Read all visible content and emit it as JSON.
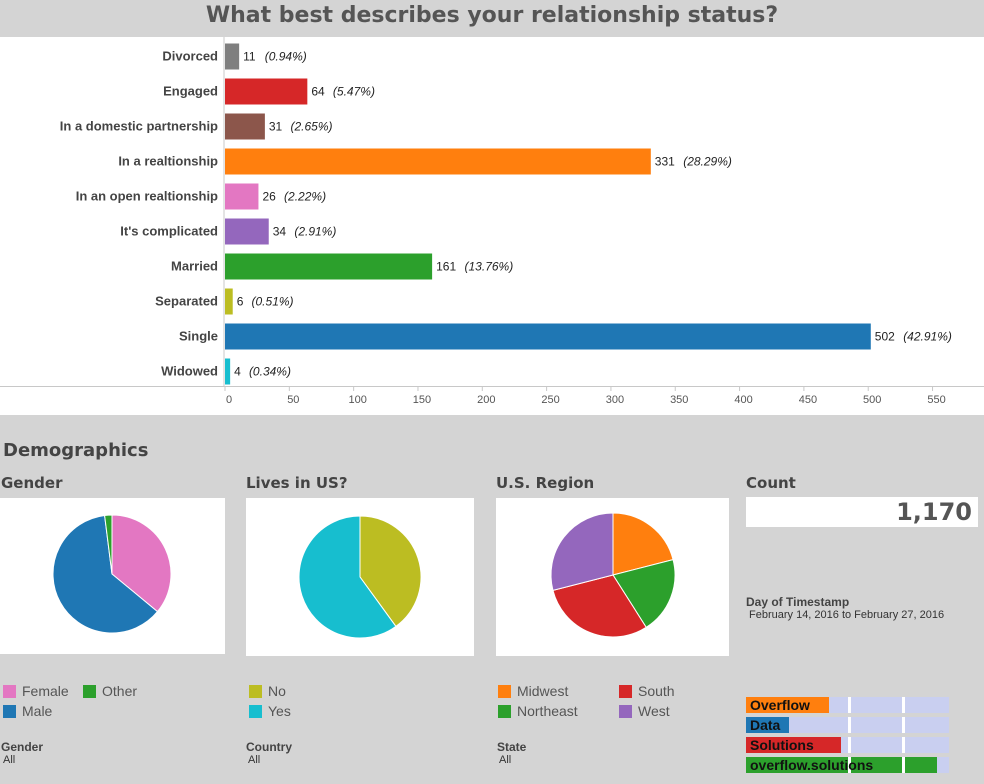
{
  "title": "What best describes your relationship status?",
  "chart_data": [
    {
      "type": "bar",
      "title": "What best describes your relationship status?",
      "categories": [
        "Divorced",
        "Engaged",
        "In a domestic partnership",
        "In a realtionship",
        "In an open realtionship",
        "It's complicated",
        "Married",
        "Separated",
        "Single",
        "Widowed"
      ],
      "values": [
        11,
        64,
        31,
        331,
        26,
        34,
        161,
        6,
        502,
        4
      ],
      "value_labels": [
        "11",
        "64",
        "31",
        "331",
        "26",
        "34",
        "161",
        "6",
        "502",
        "4"
      ],
      "pct_labels": [
        "(0.94%)",
        "(5.47%)",
        "(2.65%)",
        "(28.29%)",
        "(2.22%)",
        "(2.91%)",
        "(13.76%)",
        "(0.51%)",
        "(42.91%)",
        "(0.34%)"
      ],
      "colors": [
        "#7f7f7f",
        "#d62728",
        "#8c564b",
        "#ff7f0e",
        "#e377c2",
        "#9467bd",
        "#2ca02c",
        "#bcbd22",
        "#1f77b4",
        "#17becf"
      ],
      "xticks": [
        0,
        50,
        100,
        150,
        200,
        250,
        300,
        350,
        400,
        450,
        500,
        550
      ],
      "xlim": [
        0,
        590
      ],
      "grid": false
    },
    {
      "type": "pie",
      "title": "Gender",
      "slices": [
        {
          "label": "Female",
          "value": 0.36,
          "color": "#e377c2"
        },
        {
          "label": "Male",
          "value": 0.62,
          "color": "#1f77b4"
        },
        {
          "label": "Other",
          "value": 0.02,
          "color": "#2ca02c"
        }
      ]
    },
    {
      "type": "pie",
      "title": "Lives in US?",
      "slices": [
        {
          "label": "No",
          "value": 0.4,
          "color": "#bcbd22"
        },
        {
          "label": "Yes",
          "value": 0.6,
          "color": "#17becf"
        }
      ]
    },
    {
      "type": "pie",
      "title": "U.S. Region",
      "slices": [
        {
          "label": "Midwest",
          "value": 0.21,
          "color": "#ff7f0e"
        },
        {
          "label": "Northeast",
          "value": 0.2,
          "color": "#2ca02c"
        },
        {
          "label": "South",
          "value": 0.3,
          "color": "#d62728"
        },
        {
          "label": "West",
          "value": 0.29,
          "color": "#9467bd"
        }
      ]
    }
  ],
  "demographics": {
    "heading": "Demographics",
    "gender": {
      "title": "Gender",
      "legend": [
        "Female",
        "Other",
        "Male"
      ]
    },
    "us": {
      "title": "Lives in US?",
      "legend": [
        "No",
        "Yes"
      ]
    },
    "region": {
      "title": "U.S. Region",
      "legend": [
        "Midwest",
        "South",
        "Northeast",
        "West"
      ]
    },
    "count": {
      "title": "Count",
      "value": "1,170"
    }
  },
  "filters": {
    "gender": {
      "label": "Gender",
      "value": "All"
    },
    "country": {
      "label": "Country",
      "value": "All"
    },
    "state": {
      "label": "State",
      "value": "All"
    },
    "day": {
      "label": "Day of Timestamp",
      "range": "February 14, 2016 to February 27, 2016"
    }
  },
  "branding": {
    "rows": [
      {
        "text": "Overflow",
        "color": "#ff7f0e",
        "fill": 0.41
      },
      {
        "text": "Data",
        "color": "#1f77b4",
        "fill": 0.21
      },
      {
        "text": "Solutions",
        "color": "#d62728",
        "fill": 0.47
      },
      {
        "text": "overflow.solutions",
        "color": "#2ca02c",
        "fill": 0.94
      }
    ]
  }
}
